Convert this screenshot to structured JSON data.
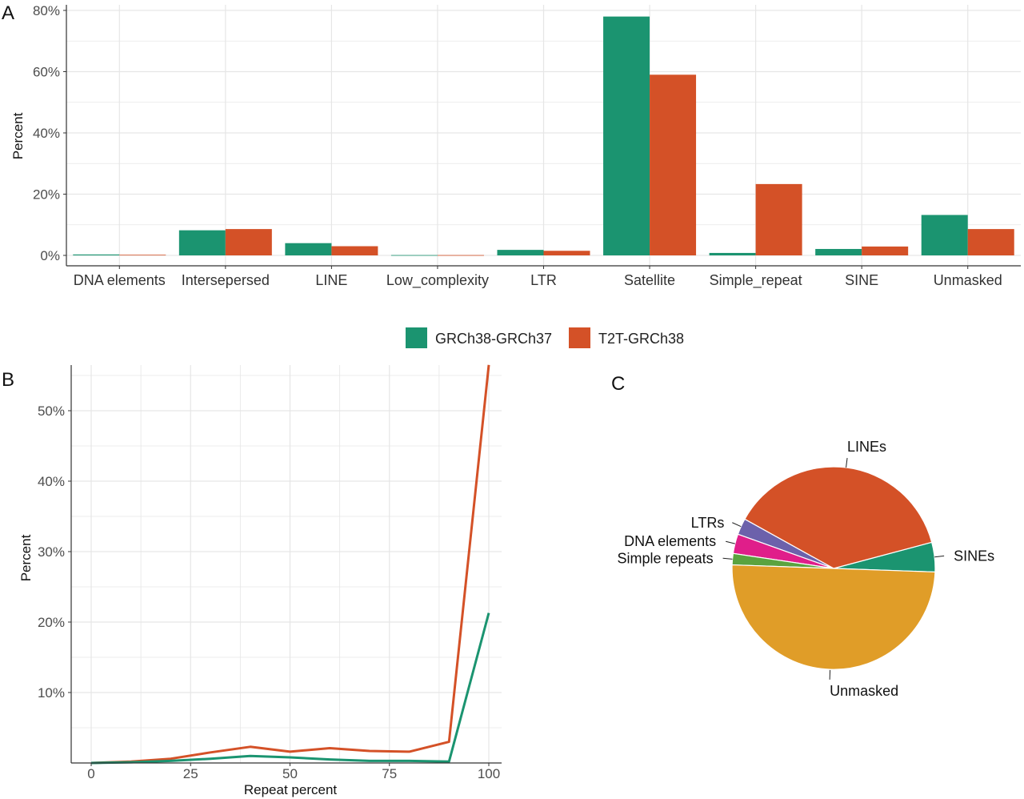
{
  "colors": {
    "green": "#1b9470",
    "orange": "#d45127",
    "purple": "#6c61ab",
    "magenta": "#e01e8a",
    "lightgreen": "#5aa33f",
    "gold": "#e09d28",
    "grid": "#e6e6e6"
  },
  "legend": [
    {
      "name": "GRCh38-GRCh37",
      "color": "#1b9470"
    },
    {
      "name": "T2T-GRCh38",
      "color": "#d45127"
    }
  ],
  "chart_data": [
    {
      "panel": "A",
      "type": "bar",
      "ylabel": "Percent",
      "xlabel": "",
      "ylim": [
        0,
        80
      ],
      "yticks": [
        "0%",
        "20%",
        "40%",
        "60%",
        "80%"
      ],
      "ytick_values": [
        0,
        20,
        40,
        60,
        80
      ],
      "categories": [
        "DNA elements",
        "Intersepersed",
        "LINE",
        "Low_complexity",
        "LTR",
        "Satellite",
        "Simple_repeat",
        "SINE",
        "Unmasked"
      ],
      "series": [
        {
          "name": "GRCh38-GRCh37",
          "values": [
            0.3,
            8.2,
            4.0,
            0.1,
            1.8,
            78.0,
            0.8,
            2.1,
            13.2
          ]
        },
        {
          "name": "T2T-GRCh38",
          "values": [
            0.2,
            8.6,
            3.0,
            0.1,
            1.5,
            59.0,
            23.3,
            2.9,
            8.6
          ]
        }
      ],
      "grid": true
    },
    {
      "panel": "B",
      "type": "line",
      "xlabel": "Repeat percent",
      "ylabel": "Percent",
      "xlim": [
        -5,
        102
      ],
      "ylim": [
        0,
        56.5
      ],
      "xticks": [
        "0",
        "25",
        "50",
        "75",
        "100"
      ],
      "xtick_values": [
        0,
        25,
        50,
        75,
        100
      ],
      "yticks": [
        "10%",
        "20%",
        "30%",
        "40%",
        "50%"
      ],
      "ytick_values": [
        10,
        20,
        30,
        40,
        50
      ],
      "x": [
        0,
        10,
        20,
        30,
        40,
        50,
        60,
        70,
        80,
        90,
        100
      ],
      "series": [
        {
          "name": "GRCh38-GRCh37",
          "values": [
            0,
            0.1,
            0.3,
            0.6,
            1.0,
            0.8,
            0.5,
            0.3,
            0.3,
            0.2,
            21.3
          ]
        },
        {
          "name": "T2T-GRCh38",
          "values": [
            0,
            0.2,
            0.6,
            1.5,
            2.3,
            1.6,
            2.1,
            1.7,
            1.6,
            3.0,
            56.5
          ]
        }
      ],
      "grid": true
    },
    {
      "panel": "C",
      "type": "pie",
      "slices": [
        {
          "label": "SINEs",
          "value": 4.7,
          "color": "#1b9470"
        },
        {
          "label": "LINEs",
          "value": 37.8,
          "color": "#d45127"
        },
        {
          "label": "LTRs",
          "value": 2.6,
          "color": "#6c61ab"
        },
        {
          "label": "DNA elements",
          "value": 3.1,
          "color": "#e01e8a"
        },
        {
          "label": "Simple repeats",
          "value": 1.8,
          "color": "#5aa33f"
        },
        {
          "label": "Unmasked",
          "value": 50.0,
          "color": "#e09d28"
        }
      ]
    }
  ]
}
